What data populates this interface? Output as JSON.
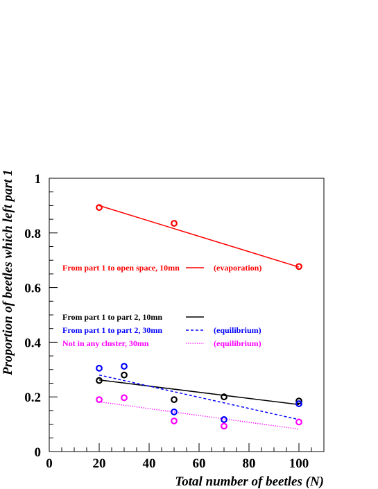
{
  "chart_data": {
    "type": "scatter",
    "xlabel": "Total number of beetles (N)",
    "ylabel": "Proportion of beetles which left part 1",
    "xlim": [
      0,
      110
    ],
    "ylim": [
      0,
      1
    ],
    "x_ticks": [
      0,
      20,
      40,
      60,
      80,
      100
    ],
    "y_ticks": [
      0,
      0.2,
      0.4,
      0.6,
      0.8,
      1
    ],
    "x_tick_labels": [
      "0",
      "20",
      "40",
      "60",
      "80",
      "100"
    ],
    "y_tick_labels": [
      "0",
      "0.2",
      "0.4",
      "0.6",
      "0.8",
      "1"
    ],
    "grid": false,
    "series": [
      {
        "name": "From part 1 to open space, 10mn",
        "color": "#ff0000",
        "line_style": "solid",
        "fit_label": "(evaporation)",
        "x": [
          20,
          50,
          100
        ],
        "y": [
          0.893,
          0.835,
          0.677
        ],
        "fit": [
          [
            20,
            0.9
          ],
          [
            100,
            0.675
          ]
        ]
      },
      {
        "name": "From part 1 to part 2, 10mn",
        "color": "#000000",
        "line_style": "solid",
        "fit_label": "",
        "x": [
          20,
          30,
          50,
          70,
          100
        ],
        "y": [
          0.26,
          0.28,
          0.19,
          0.2,
          0.185
        ],
        "fit": [
          [
            20,
            0.262
          ],
          [
            100,
            0.172
          ]
        ]
      },
      {
        "name": "From part 1 to part 2, 30mn",
        "color": "#0000ff",
        "line_style": "dashed",
        "fit_label": "(equilibrium)",
        "x": [
          20,
          30,
          50,
          70,
          100
        ],
        "y": [
          0.305,
          0.312,
          0.145,
          0.117,
          0.175
        ],
        "fit": [
          [
            20,
            0.28
          ],
          [
            100,
            0.117
          ]
        ]
      },
      {
        "name": "Not in any cluster, 30mn",
        "color": "#ff00ff",
        "line_style": "dotted",
        "fit_label": "(equilibrium)",
        "x": [
          20,
          30,
          50,
          70,
          100
        ],
        "y": [
          0.19,
          0.197,
          0.112,
          0.093,
          0.108
        ],
        "fit": [
          [
            20,
            0.182
          ],
          [
            100,
            0.082
          ]
        ]
      }
    ]
  }
}
